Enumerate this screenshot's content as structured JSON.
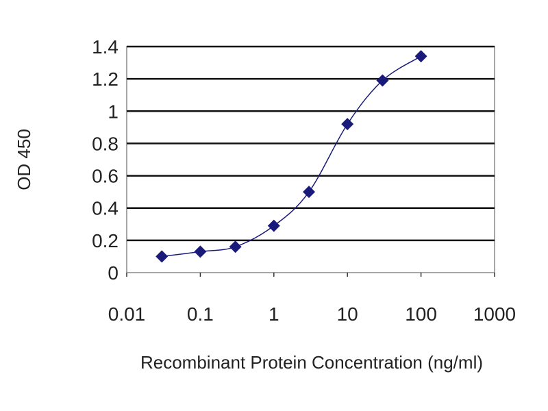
{
  "chart_data": {
    "type": "line",
    "title": "",
    "xlabel": "Recombinant Protein Concentration (ng/ml)",
    "ylabel": "OD 450",
    "x_scale": "log",
    "xlim": [
      0.01,
      1000
    ],
    "ylim": [
      0,
      1.4
    ],
    "x_ticks": [
      "0.01",
      "0.1",
      "1",
      "10",
      "100",
      "1000"
    ],
    "y_ticks": [
      "0",
      "0.2",
      "0.4",
      "0.6",
      "0.8",
      "1",
      "1.2",
      "1.4"
    ],
    "grid": "horizontal",
    "marker": "diamond",
    "series_color": "#1a1a7a",
    "series": [
      {
        "x": [
          0.03,
          0.1,
          0.3,
          1,
          3,
          10,
          30,
          100
        ],
        "values": [
          0.1,
          0.13,
          0.16,
          0.29,
          0.5,
          0.92,
          1.19,
          1.34
        ]
      }
    ]
  }
}
